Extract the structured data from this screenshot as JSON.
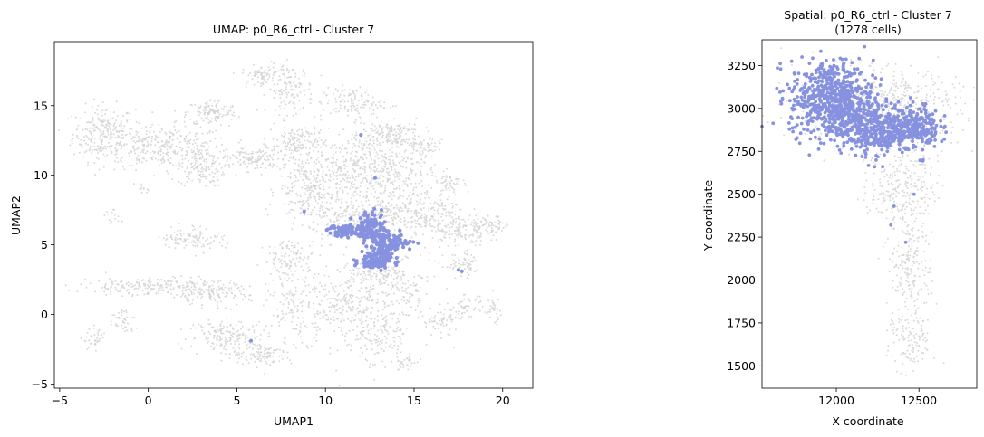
{
  "chart_data": [
    {
      "type": "scatter",
      "title": "UMAP: p0_R6_ctrl - Cluster 7",
      "xlabel": "UMAP1",
      "ylabel": "UMAP2",
      "xlim": [
        -5.3,
        21.7
      ],
      "ylim": [
        -5.3,
        19.6
      ],
      "xticks": [
        -5,
        0,
        5,
        10,
        15,
        20
      ],
      "yticks": [
        -5,
        0,
        5,
        10,
        15
      ],
      "xtick_labels": [
        "−5",
        "0",
        "5",
        "10",
        "15",
        "20"
      ],
      "ytick_labels": [
        "−5",
        "0",
        "5",
        "10",
        "15"
      ],
      "grid": false,
      "legend": "none",
      "background_color": "#d3d3d3",
      "highlight_color": "#8692e0",
      "series": [
        {
          "role": "background",
          "blobs": [
            {
              "cx": -2.5,
              "cy": 13.0,
              "rx": 1.6,
              "ry": 1.8,
              "n": 260
            },
            {
              "cx": 1.0,
              "cy": 12.0,
              "rx": 3.2,
              "ry": 1.4,
              "n": 320
            },
            {
              "cx": 3.6,
              "cy": 14.5,
              "rx": 1.3,
              "ry": 0.9,
              "n": 120
            },
            {
              "cx": 3.0,
              "cy": 10.5,
              "rx": 1.2,
              "ry": 1.2,
              "n": 120
            },
            {
              "cx": 6.0,
              "cy": 11.2,
              "rx": 1.4,
              "ry": 0.8,
              "n": 120
            },
            {
              "cx": 6.3,
              "cy": 17.2,
              "rx": 0.9,
              "ry": 0.6,
              "n": 60
            },
            {
              "cx": 8.0,
              "cy": 16.2,
              "rx": 1.2,
              "ry": 1.6,
              "n": 130
            },
            {
              "cx": 8.5,
              "cy": 12.2,
              "rx": 1.4,
              "ry": 1.4,
              "n": 160
            },
            {
              "cx": 9.0,
              "cy": 9.0,
              "rx": 1.6,
              "ry": 2.2,
              "n": 220
            },
            {
              "cx": 12.5,
              "cy": 10.5,
              "rx": 3.0,
              "ry": 2.4,
              "n": 520
            },
            {
              "cx": 11.5,
              "cy": 15.2,
              "rx": 1.6,
              "ry": 1.0,
              "n": 120
            },
            {
              "cx": 13.5,
              "cy": 13.0,
              "rx": 1.6,
              "ry": 1.0,
              "n": 140
            },
            {
              "cx": 15.5,
              "cy": 7.5,
              "rx": 2.2,
              "ry": 1.6,
              "n": 240
            },
            {
              "cx": 17.5,
              "cy": 6.0,
              "rx": 1.4,
              "ry": 1.0,
              "n": 120
            },
            {
              "cx": 19.3,
              "cy": 6.4,
              "rx": 1.0,
              "ry": 0.6,
              "n": 60
            },
            {
              "cx": 12.2,
              "cy": 6.8,
              "rx": 2.6,
              "ry": 1.4,
              "n": 260
            },
            {
              "cx": 13.0,
              "cy": 3.0,
              "rx": 2.2,
              "ry": 1.2,
              "n": 180
            },
            {
              "cx": 13.0,
              "cy": -1.0,
              "rx": 1.8,
              "ry": 2.8,
              "n": 220
            },
            {
              "cx": 11.0,
              "cy": 0.5,
              "rx": 1.4,
              "ry": 2.0,
              "n": 150
            },
            {
              "cx": 8.5,
              "cy": 0.5,
              "rx": 1.6,
              "ry": 2.2,
              "n": 150
            },
            {
              "cx": 8.0,
              "cy": 4.0,
              "rx": 1.3,
              "ry": 1.2,
              "n": 110
            },
            {
              "cx": 2.5,
              "cy": 5.5,
              "rx": 1.6,
              "ry": 0.8,
              "n": 110
            },
            {
              "cx": 0.0,
              "cy": 2.0,
              "rx": 3.5,
              "ry": 0.6,
              "n": 200
            },
            {
              "cx": 3.5,
              "cy": 1.5,
              "rx": 2.0,
              "ry": 0.8,
              "n": 140
            },
            {
              "cx": 4.5,
              "cy": -1.5,
              "rx": 2.0,
              "ry": 1.0,
              "n": 160
            },
            {
              "cx": 6.5,
              "cy": -2.8,
              "rx": 1.6,
              "ry": 0.8,
              "n": 120
            },
            {
              "cx": -1.5,
              "cy": -0.5,
              "rx": 0.7,
              "ry": 0.9,
              "n": 40
            },
            {
              "cx": -3.0,
              "cy": -1.8,
              "rx": 0.6,
              "ry": 0.7,
              "n": 35
            },
            {
              "cx": 14.8,
              "cy": 1.5,
              "rx": 0.6,
              "ry": 1.0,
              "n": 50
            },
            {
              "cx": 16.5,
              "cy": -0.5,
              "rx": 1.0,
              "ry": 0.9,
              "n": 60
            },
            {
              "cx": 18.0,
              "cy": 0.5,
              "rx": 0.8,
              "ry": 0.8,
              "n": 50
            },
            {
              "cx": 19.5,
              "cy": 0.3,
              "rx": 0.4,
              "ry": 0.9,
              "n": 30
            },
            {
              "cx": 17.8,
              "cy": 3.5,
              "rx": 1.0,
              "ry": 0.8,
              "n": 60
            },
            {
              "cx": 14.5,
              "cy": -3.5,
              "rx": 0.6,
              "ry": 0.6,
              "n": 30
            },
            {
              "cx": 15.5,
              "cy": 12.0,
              "rx": 1.0,
              "ry": 0.7,
              "n": 60
            },
            {
              "cx": 17.0,
              "cy": 9.5,
              "rx": 0.8,
              "ry": 0.6,
              "n": 40
            },
            {
              "cx": -2.0,
              "cy": 7.0,
              "rx": 0.5,
              "ry": 0.4,
              "n": 15
            },
            {
              "cx": -0.3,
              "cy": 9.0,
              "rx": 0.3,
              "ry": 0.3,
              "n": 10
            }
          ]
        },
        {
          "role": "highlight",
          "blobs": [
            {
              "cx": 11.2,
              "cy": 6.0,
              "rx": 1.0,
              "ry": 0.4,
              "n": 70
            },
            {
              "cx": 12.6,
              "cy": 6.3,
              "rx": 0.7,
              "ry": 0.9,
              "n": 110
            },
            {
              "cx": 13.6,
              "cy": 5.2,
              "rx": 1.2,
              "ry": 0.6,
              "n": 110
            },
            {
              "cx": 13.1,
              "cy": 4.1,
              "rx": 0.8,
              "ry": 0.6,
              "n": 80
            },
            {
              "cx": 12.8,
              "cy": 3.8,
              "rx": 0.8,
              "ry": 0.4,
              "n": 60
            }
          ],
          "outliers": [
            [
              12.0,
              12.9
            ],
            [
              12.8,
              9.8
            ],
            [
              8.8,
              7.4
            ],
            [
              5.8,
              -1.9
            ],
            [
              17.5,
              3.2
            ],
            [
              17.7,
              3.1
            ]
          ]
        }
      ]
    },
    {
      "type": "scatter",
      "title": "Spatial: p0_R6_ctrl - Cluster 7",
      "subtitle": "(1278 cells)",
      "xlabel": "X coordinate",
      "ylabel": "Y coordinate",
      "xlim": [
        11550,
        12850
      ],
      "ylim": [
        1370,
        3400
      ],
      "xticks": [
        12000,
        12500
      ],
      "yticks": [
        1500,
        1750,
        2000,
        2250,
        2500,
        2750,
        3000,
        3250
      ],
      "xtick_labels": [
        "12000",
        "12500"
      ],
      "ytick_labels": [
        "1500",
        "1750",
        "2000",
        "2250",
        "2500",
        "2750",
        "3000",
        "3250"
      ],
      "grid": false,
      "legend": "none",
      "background_color": "#d3d3d3",
      "highlight_color": "#8692e0",
      "series": [
        {
          "role": "background",
          "blobs": [
            {
              "cx": 12250,
              "cy": 3000,
              "rx": 450,
              "ry": 200,
              "n": 700
            },
            {
              "cx": 12400,
              "cy": 2550,
              "rx": 180,
              "ry": 220,
              "n": 260
            },
            {
              "cx": 12450,
              "cy": 2100,
              "rx": 120,
              "ry": 250,
              "n": 190
            },
            {
              "cx": 12450,
              "cy": 1650,
              "rx": 120,
              "ry": 180,
              "n": 130
            }
          ]
        },
        {
          "role": "highlight",
          "count": 1278,
          "blobs": [
            {
              "cx": 11970,
              "cy": 3060,
              "rx": 230,
              "ry": 200,
              "n": 620
            },
            {
              "cx": 12220,
              "cy": 2880,
              "rx": 230,
              "ry": 130,
              "n": 420
            },
            {
              "cx": 12480,
              "cy": 2900,
              "rx": 130,
              "ry": 120,
              "n": 200
            }
          ],
          "outliers": [
            [
              12470,
              2500
            ],
            [
              12350,
              2430
            ],
            [
              12330,
              2320
            ],
            [
              12420,
              2220
            ],
            [
              12280,
              2660
            ]
          ]
        }
      ]
    }
  ]
}
